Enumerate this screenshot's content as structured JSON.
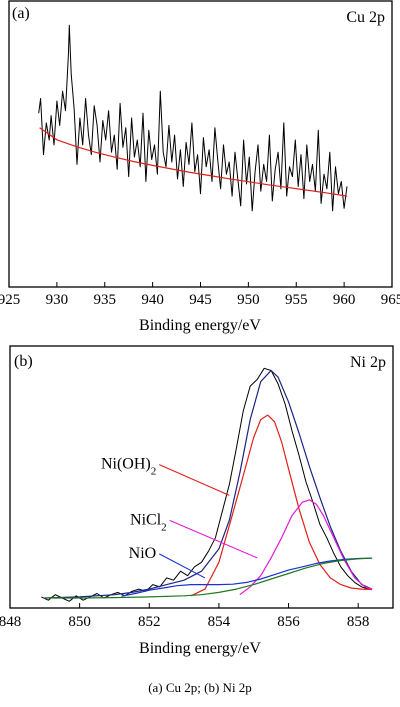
{
  "caption": "(a) Cu 2p; (b) Ni 2p",
  "chart_data": [
    {
      "type": "line",
      "panel_label": "(a)",
      "title": "Cu 2p",
      "xlabel": "Binding energy/eV",
      "ylabel": "",
      "xlim": [
        925,
        965
      ],
      "ylim": [
        0,
        100
      ],
      "xticks": [
        925,
        930,
        935,
        940,
        945,
        950,
        955,
        960,
        965
      ],
      "y_ticks_shown": false,
      "grid": false,
      "series": [
        {
          "role": "raw-spectrum",
          "color": "#000000",
          "x": [
            928.1,
            928.3,
            928.6,
            928.9,
            929.2,
            929.4,
            929.7,
            930.0,
            930.3,
            930.6,
            930.9,
            931.2,
            931.3,
            931.5,
            931.8,
            932.1,
            932.4,
            932.7,
            933.0,
            933.3,
            933.6,
            933.9,
            934.2,
            934.5,
            934.8,
            935.1,
            935.4,
            935.7,
            936.0,
            936.3,
            936.6,
            936.9,
            937.2,
            937.5,
            937.8,
            938.1,
            938.4,
            938.7,
            939.0,
            939.3,
            939.6,
            939.9,
            940.2,
            940.5,
            940.8,
            941.1,
            941.4,
            941.7,
            942.0,
            942.3,
            942.6,
            942.9,
            943.2,
            943.5,
            943.8,
            944.1,
            944.4,
            944.7,
            945.0,
            945.3,
            945.6,
            945.9,
            946.2,
            946.5,
            946.8,
            947.1,
            947.4,
            947.7,
            948.0,
            948.3,
            948.6,
            948.9,
            949.2,
            949.5,
            949.8,
            950.1,
            950.4,
            950.7,
            951.0,
            951.3,
            951.6,
            951.9,
            952.2,
            952.5,
            952.8,
            953.1,
            953.4,
            953.7,
            954.0,
            954.3,
            954.6,
            954.9,
            955.2,
            955.5,
            955.8,
            956.1,
            956.4,
            956.7,
            957.0,
            957.3,
            957.6,
            957.9,
            958.2,
            958.5,
            958.8,
            959.1,
            959.4,
            959.7,
            960.0,
            960.3
          ],
          "y": [
            61,
            67,
            44,
            57,
            50,
            60,
            48,
            66,
            56,
            70,
            62,
            85,
            97,
            77,
            63,
            40,
            59,
            48,
            67,
            52,
            44,
            64,
            56,
            41,
            58,
            50,
            62,
            45,
            52,
            38,
            65,
            47,
            55,
            35,
            59,
            43,
            50,
            39,
            61,
            33,
            54,
            42,
            48,
            36,
            70,
            45,
            39,
            56,
            41,
            52,
            34,
            46,
            31,
            49,
            40,
            57,
            37,
            44,
            28,
            51,
            39,
            46,
            33,
            55,
            42,
            30,
            48,
            36,
            41,
            27,
            45,
            34,
            23,
            50,
            32,
            43,
            21,
            37,
            48,
            29,
            40,
            33,
            52,
            25,
            38,
            45,
            30,
            57,
            27,
            39,
            35,
            50,
            31,
            44,
            26,
            48,
            33,
            40,
            29,
            54,
            24,
            36,
            30,
            45,
            21,
            39,
            28,
            33,
            22,
            31
          ]
        },
        {
          "role": "background",
          "color": "#e0201b",
          "x": [
            928.2,
            930,
            932,
            934,
            936,
            938,
            940,
            942,
            944,
            946,
            948,
            950,
            952,
            954,
            956,
            958,
            960.3
          ],
          "y": [
            55,
            50.1,
            47.3,
            45.0,
            43.0,
            41.2,
            39.6,
            38.1,
            36.7,
            35.4,
            34.1,
            32.9,
            31.7,
            30.6,
            29.5,
            28.4,
            27.0
          ]
        }
      ]
    },
    {
      "type": "line",
      "panel_label": "(b)",
      "title": "Ni 2p",
      "xlabel": "Binding energy/eV",
      "ylabel": "",
      "xlim": [
        848,
        859
      ],
      "ylim": [
        0,
        100
      ],
      "xticks": [
        848,
        850,
        852,
        854,
        856,
        858
      ],
      "y_ticks_shown": false,
      "grid": false,
      "annotations": [
        {
          "text": "Ni(OH)",
          "sub": "2",
          "x": 852.2,
          "y": 58,
          "color": "#e0201b",
          "to": [
            854.3,
            46
          ]
        },
        {
          "text": "NiCl",
          "sub": "2",
          "x": 852.5,
          "y": 33,
          "color": "#e21ad6",
          "to": [
            855.1,
            18
          ]
        },
        {
          "text": "NiO",
          "sub": "",
          "x": 852.2,
          "y": 18,
          "color": "#1c2fd1",
          "to": [
            853.6,
            9
          ]
        }
      ],
      "series": [
        {
          "role": "raw-spectrum",
          "color": "#000000",
          "x": [
            848.9,
            849.1,
            849.3,
            849.5,
            849.7,
            849.9,
            850.1,
            850.3,
            850.5,
            850.7,
            850.9,
            851.1,
            851.3,
            851.5,
            851.7,
            851.9,
            852.1,
            852.3,
            852.5,
            852.7,
            852.9,
            853.1,
            853.3,
            853.5,
            853.7,
            853.9,
            854.1,
            854.3,
            854.5,
            854.7,
            854.9,
            855.1,
            855.3,
            855.5,
            855.7,
            855.9,
            856.1,
            856.3,
            856.5,
            856.7,
            856.9,
            857.1,
            857.3,
            857.5,
            857.7,
            857.9,
            858.1,
            858.3
          ],
          "y": [
            0.5,
            -1,
            1.5,
            0,
            -1.5,
            1,
            -1,
            0.5,
            2,
            0,
            1.5,
            2.5,
            1,
            3,
            4,
            3,
            6,
            5,
            9,
            8,
            12,
            10,
            14,
            16,
            21,
            27,
            39,
            51,
            67,
            84,
            95,
            98,
            103,
            102,
            96,
            87,
            75,
            64,
            52,
            43,
            33,
            27,
            20,
            14,
            10,
            7,
            5,
            4
          ]
        },
        {
          "role": "envelope",
          "color": "#1c2480",
          "x": [
            849,
            850,
            851,
            851.5,
            852,
            852.5,
            853,
            853.5,
            854,
            854.3,
            854.6,
            854.9,
            855.2,
            855.5,
            855.7,
            856,
            856.3,
            856.6,
            856.9,
            857.2,
            857.5,
            857.8,
            858.1,
            858.4
          ],
          "y": [
            0,
            0.5,
            1.5,
            2.5,
            4,
            6,
            8,
            12,
            22,
            35,
            56,
            80,
            97,
            102,
            99,
            88,
            74,
            59,
            45,
            32,
            21,
            12,
            6,
            4
          ]
        },
        {
          "role": "Ni(OH)2",
          "color": "#e0201b",
          "x": [
            853.2,
            853.6,
            854.0,
            854.4,
            854.7,
            855.0,
            855.2,
            855.4,
            855.6,
            855.8,
            856.0,
            856.3,
            856.6,
            856.9,
            857.2,
            857.5,
            857.8,
            858.1,
            858.4
          ],
          "y": [
            1,
            4,
            16,
            38,
            55,
            72,
            80,
            82,
            79,
            70,
            58,
            40,
            25,
            15,
            9,
            6,
            4.5,
            4,
            3.8
          ]
        },
        {
          "role": "NiCl2",
          "color": "#e21ad6",
          "x": [
            854.6,
            854.9,
            855.2,
            855.5,
            855.8,
            856.1,
            856.4,
            856.6,
            856.8,
            857.0,
            857.3,
            857.6,
            857.9,
            858.2,
            858.4
          ],
          "y": [
            1.5,
            5,
            10,
            18,
            27,
            37,
            43,
            44,
            42,
            37,
            27,
            17,
            9,
            5,
            4
          ]
        },
        {
          "role": "NiO",
          "color": "#1c2fd1",
          "x": [
            851.2,
            851.6,
            852.0,
            852.4,
            852.8,
            853.2,
            853.6,
            854.0,
            854.4,
            854.8,
            855.2,
            855.6,
            856.0,
            856.4,
            856.8,
            857.2,
            857.6,
            858.0,
            858.4
          ],
          "y": [
            0.8,
            2,
            3.5,
            4.5,
            5.5,
            6,
            6,
            6,
            6.2,
            7,
            8.5,
            10.5,
            12.5,
            14,
            15.5,
            16.6,
            17.3,
            17.7,
            17.9
          ]
        },
        {
          "role": "background",
          "color": "#1f7a1f",
          "x": [
            849,
            850,
            851,
            852,
            853,
            853.5,
            854,
            854.5,
            855,
            855.5,
            856,
            856.5,
            857,
            857.5,
            858,
            858.4
          ],
          "y": [
            0,
            0,
            0.2,
            0.5,
            1,
            1.5,
            2.5,
            4,
            6,
            8.5,
            11,
            13.5,
            15.5,
            16.8,
            17.6,
            17.9
          ]
        }
      ]
    }
  ]
}
